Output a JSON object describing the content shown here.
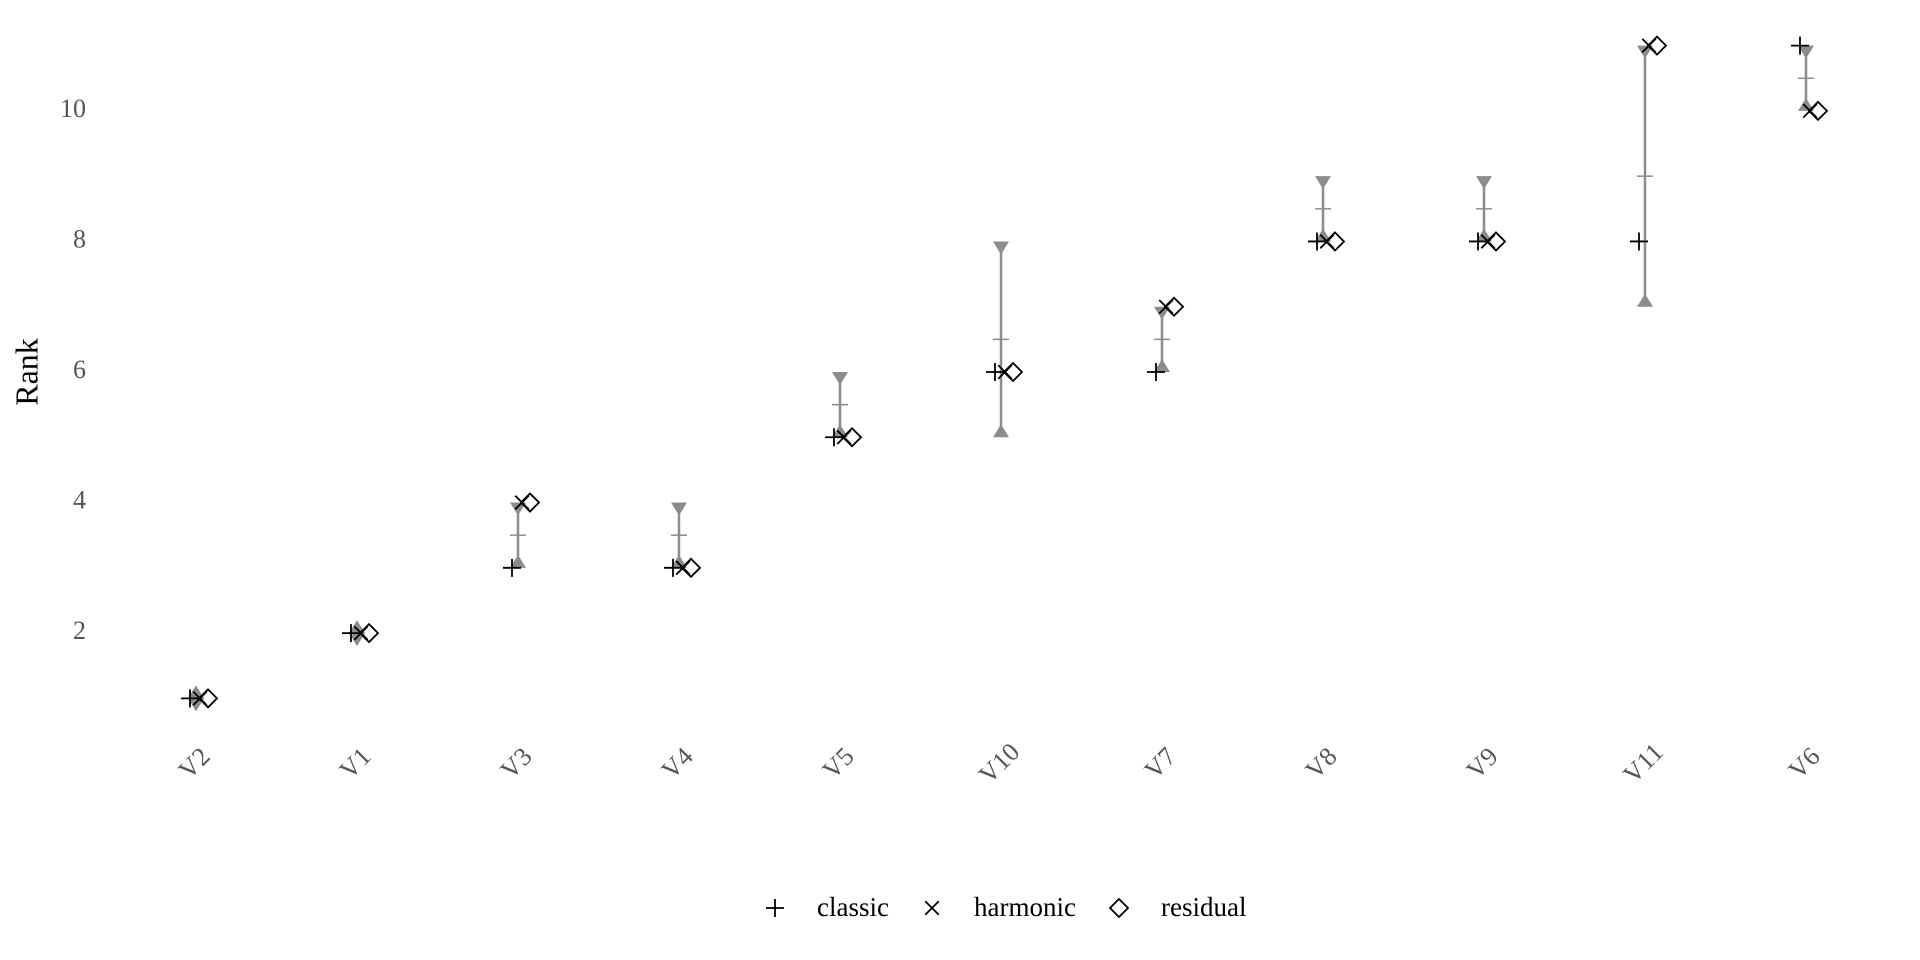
{
  "chart_data": {
    "type": "dot-range",
    "ylabel": "Rank",
    "categories": [
      "V2",
      "V1",
      "V3",
      "V4",
      "V5",
      "V10",
      "V7",
      "V8",
      "V9",
      "V11",
      "V6"
    ],
    "ylim": [
      0.5,
      11.5
    ],
    "yticks": [
      2,
      4,
      6,
      8,
      10
    ],
    "range": {
      "color": "#8c8c8c",
      "lower": [
        1,
        2,
        3,
        3,
        5,
        5,
        6,
        8,
        8,
        7,
        10
      ],
      "upper": [
        1,
        2,
        4,
        4,
        6,
        8,
        7,
        9,
        9,
        11,
        11
      ],
      "mid": [
        1,
        2,
        3.5,
        3.5,
        5.5,
        6.5,
        6.5,
        8.5,
        8.5,
        9,
        10.5
      ]
    },
    "series": [
      {
        "name": "classic",
        "marker": "plus",
        "color": "#000000",
        "values": [
          1,
          2,
          3,
          3,
          5,
          6,
          6,
          8,
          8,
          8,
          11
        ]
      },
      {
        "name": "harmonic",
        "marker": "cross",
        "color": "#000000",
        "values": [
          1,
          2,
          4,
          3,
          5,
          6,
          7,
          8,
          8,
          11,
          10
        ]
      },
      {
        "name": "residual",
        "marker": "diamond",
        "color": "#000000",
        "values": [
          1,
          2,
          4,
          3,
          5,
          6,
          7,
          8,
          8,
          11,
          10
        ]
      }
    ]
  }
}
